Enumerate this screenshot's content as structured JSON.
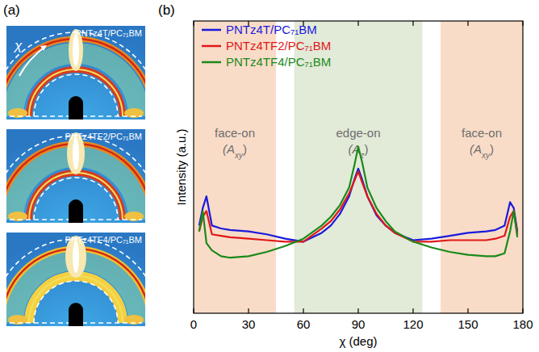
{
  "panel_labels": [
    "(a)",
    "(b)"
  ],
  "images": [
    {
      "label": "PNTz4T/PC₇₁BM"
    },
    {
      "label": "PNTz4TF2/PC₇₁BM"
    },
    {
      "label": "PNTz4TF4/PC₇₁BM"
    }
  ],
  "chi_label": "χ",
  "chart_data": {
    "type": "line",
    "x_label": "χ (deg)",
    "y_label": "Intensity (a.u.)",
    "xlim": [
      0,
      180
    ],
    "xticks": [
      0,
      30,
      60,
      90,
      120,
      150,
      180
    ],
    "ylim": [
      0,
      100
    ],
    "tick_labels": "x",
    "legend": "upper left",
    "regions": [
      {
        "label": "face-on",
        "sublabel": [
          "(A",
          "xy",
          ")"
        ],
        "xrange": [
          0,
          45
        ],
        "color": "#f9dcc8"
      },
      {
        "label": "edge-on",
        "sublabel": [
          "(A",
          "z",
          ")"
        ],
        "xrange": [
          55,
          125
        ],
        "color": "#e2ead8"
      },
      {
        "label": "face-on",
        "sublabel": [
          "(A",
          "xy",
          ")"
        ],
        "xrange": [
          135,
          180
        ],
        "color": "#f9dcc8"
      }
    ],
    "x": [
      3,
      5,
      7,
      10,
      15,
      20,
      30,
      40,
      50,
      60,
      70,
      75,
      80,
      85,
      88,
      90,
      92,
      95,
      100,
      105,
      110,
      120,
      130,
      140,
      150,
      160,
      165,
      170,
      173,
      175,
      177
    ],
    "series": [
      {
        "name": "PNTz4T/PC₇₁BM",
        "color": "#1a1adc",
        "values": [
          30,
          36,
          40,
          30,
          29,
          28.5,
          28,
          27,
          25.5,
          24.5,
          27.5,
          30,
          34,
          40,
          46,
          49.5,
          46,
          40,
          33.5,
          30,
          27.5,
          25,
          25.5,
          26.5,
          27.5,
          28,
          28.5,
          30,
          38,
          36,
          28
        ]
      },
      {
        "name": "PNTz4TF2/PC₇₁BM",
        "color": "#e01818",
        "values": [
          28,
          33,
          35,
          27,
          26.5,
          26,
          25.5,
          25,
          24.5,
          24.5,
          29,
          31.5,
          35.5,
          41,
          45.5,
          48.5,
          45,
          40,
          34,
          30,
          27.5,
          24.5,
          24.5,
          25,
          25,
          25,
          25.5,
          26.5,
          33,
          35,
          27
        ]
      },
      {
        "name": "PNTz4TF4/PC₇₁BM",
        "color": "#1a8a1a",
        "values": [
          28,
          35,
          24,
          21.5,
          19.5,
          19,
          19.5,
          21,
          23,
          25.5,
          30,
          33,
          37,
          43,
          51,
          57,
          52,
          43,
          36,
          31.5,
          28,
          24.5,
          22.5,
          21,
          20,
          19.5,
          19.5,
          20.5,
          28,
          35,
          26
        ]
      }
    ]
  }
}
